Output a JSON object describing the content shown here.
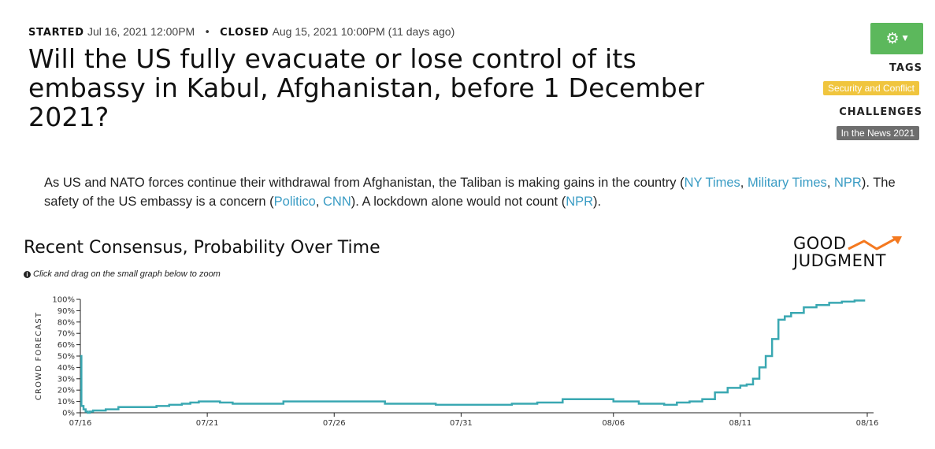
{
  "meta": {
    "started_label": "STARTED",
    "started_value": "Jul 16, 2021 12:00PM",
    "separator": "•",
    "closed_label": "CLOSED",
    "closed_value": "Aug 15, 2021 10:00PM (11 days ago)"
  },
  "question": {
    "title": "Will the US fully evacuate or lose control of its embassy in Kabul, Afghanistan, before 1 December 2021?"
  },
  "sidebar": {
    "settings_icon": "gear-icon",
    "tags_label": "TAGS",
    "tag": "Security and Conflict",
    "challenges_label": "CHALLENGES",
    "challenge": "In the News 2021",
    "colors": {
      "button": "#5cb85c",
      "tag": "#f0c53e",
      "challenge": "#6e6e6e"
    }
  },
  "description": {
    "p1": "As US and NATO forces continue their withdrawal from Afghanistan, the Taliban is making gains in the country (",
    "link_nytimes": "NY Times",
    "sep1": ", ",
    "link_military": "Military Times",
    "sep2": ", ",
    "link_npr1": "NPR",
    "p2": "). The safety of the US embassy is a concern (",
    "link_politico": "Politico",
    "sep3": ", ",
    "link_cnn": "CNN",
    "p3": "). A lockdown alone would not count (",
    "link_npr2": "NPR",
    "p4": ").",
    "link_color": "#3a9cc4"
  },
  "chart_header": {
    "title": "Recent Consensus, Probability Over Time",
    "hint": "Click and drag on the small graph below to zoom",
    "hint_icon": "info-icon"
  },
  "logo": {
    "line1": "GOOD",
    "line2": "JUDGMENT",
    "arrow_color": "#f47920"
  },
  "chart_data": {
    "type": "line",
    "step": true,
    "ylabel": "CROWD FORECAST",
    "xlabel": "",
    "ylim": [
      0,
      100
    ],
    "y_ticks": [
      "0%",
      "10%",
      "20%",
      "30%",
      "40%",
      "50%",
      "60%",
      "70%",
      "80%",
      "90%",
      "100%"
    ],
    "x_ticks": [
      "07/16",
      "07/21",
      "07/26",
      "07/31",
      "08/06",
      "08/11",
      "08/16"
    ],
    "line_color": "#3aa8b2",
    "series": [
      {
        "x": [
          "2021-07-16T00:00",
          "2021-07-16T01:00",
          "2021-07-16T03:00",
          "2021-07-16T05:00",
          "2021-07-16T07:00",
          "2021-07-16T09:00",
          "2021-07-16T12:00",
          "2021-07-17T00:00",
          "2021-07-17T12:00",
          "2021-07-18T00:00",
          "2021-07-18T12:00",
          "2021-07-19T00:00",
          "2021-07-19T12:00",
          "2021-07-20T00:00",
          "2021-07-20T08:00",
          "2021-07-20T16:00",
          "2021-07-21T00:00",
          "2021-07-21T12:00",
          "2021-07-22T00:00",
          "2021-07-23T00:00",
          "2021-07-24T00:00",
          "2021-07-25T00:00",
          "2021-07-26T00:00",
          "2021-07-27T00:00",
          "2021-07-28T00:00",
          "2021-07-29T00:00",
          "2021-07-30T00:00",
          "2021-07-31T00:00",
          "2021-08-01T00:00",
          "2021-08-02T00:00",
          "2021-08-03T00:00",
          "2021-08-04T00:00",
          "2021-08-05T00:00",
          "2021-08-06T00:00",
          "2021-08-07T00:00",
          "2021-08-08T00:00",
          "2021-08-08T12:00",
          "2021-08-09T00:00",
          "2021-08-09T12:00",
          "2021-08-10T00:00",
          "2021-08-10T12:00",
          "2021-08-11T00:00",
          "2021-08-11T06:00",
          "2021-08-11T12:00",
          "2021-08-11T18:00",
          "2021-08-12T00:00",
          "2021-08-12T06:00",
          "2021-08-12T12:00",
          "2021-08-12T18:00",
          "2021-08-13T00:00",
          "2021-08-13T12:00",
          "2021-08-14T00:00",
          "2021-08-14T12:00",
          "2021-08-15T00:00",
          "2021-08-15T12:00",
          "2021-08-15T22:00"
        ],
        "y": [
          50,
          6,
          3,
          1,
          0,
          1,
          2,
          3,
          5,
          5,
          5,
          6,
          7,
          8,
          9,
          10,
          10,
          9,
          8,
          8,
          10,
          10,
          10,
          10,
          8,
          8,
          7,
          7,
          7,
          8,
          9,
          12,
          12,
          10,
          8,
          7,
          9,
          10,
          12,
          18,
          22,
          24,
          25,
          30,
          40,
          50,
          65,
          82,
          85,
          88,
          93,
          95,
          97,
          98,
          99,
          99
        ]
      }
    ],
    "grid": false,
    "legend": "none"
  }
}
